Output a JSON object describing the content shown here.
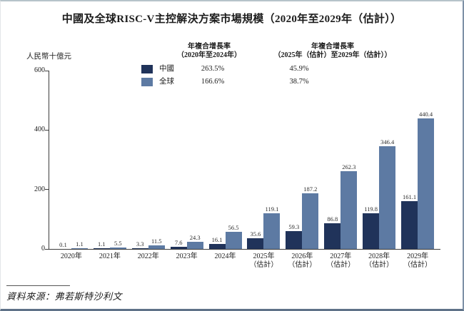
{
  "title": "中國及全球RISC-V主控解決方案市場規模（2020年至2029年（估計））",
  "y_axis_unit": "人民幣十億元",
  "legend": {
    "cagr_period_1": {
      "line1": "年複合增長率",
      "line2": "（2020年至2024年）"
    },
    "cagr_period_2": {
      "line1": "年複合增長率",
      "line2": "（2025年（估計）至2029年（估計））"
    },
    "rows": [
      {
        "label": "中國",
        "cagr1": "263.5%",
        "cagr2": "45.9%"
      },
      {
        "label": "全球",
        "cagr1": "166.6%",
        "cagr2": "38.7%"
      }
    ]
  },
  "source": "資料來源：弗若斯特沙利文",
  "colors": {
    "china": "#20335a",
    "global": "#5d7aa3",
    "axis": "#3c3c3c"
  },
  "chart_data": {
    "type": "bar",
    "title": "中國及全球RISC-V主控解決方案市場規模（2020年至2029年（估計））",
    "xlabel": "",
    "ylabel": "人民幣十億元",
    "ylim": [
      0,
      600
    ],
    "yticks": [
      0,
      200,
      400,
      600
    ],
    "grid": false,
    "legend_position": "top",
    "categories": [
      {
        "year": "2020年",
        "note": ""
      },
      {
        "year": "2021年",
        "note": ""
      },
      {
        "year": "2022年",
        "note": ""
      },
      {
        "year": "2023年",
        "note": ""
      },
      {
        "year": "2024年",
        "note": ""
      },
      {
        "year": "2025年",
        "note": "（估計）"
      },
      {
        "year": "2026年",
        "note": "（估計）"
      },
      {
        "year": "2027年",
        "note": "（估計）"
      },
      {
        "year": "2028年",
        "note": "（估計）"
      },
      {
        "year": "2029年",
        "note": "（估計）"
      }
    ],
    "series": [
      {
        "name": "中國",
        "color": "#20335a",
        "cagr_2020_2024": "263.5%",
        "cagr_2025_2029": "45.9%",
        "values": [
          0.1,
          1.1,
          3.3,
          7.6,
          16.1,
          35.6,
          59.3,
          86.8,
          119.8,
          161.1
        ]
      },
      {
        "name": "全球",
        "color": "#5d7aa3",
        "cagr_2020_2024": "166.6%",
        "cagr_2025_2029": "38.7%",
        "values": [
          1.1,
          5.5,
          11.5,
          24.3,
          56.5,
          119.1,
          187.2,
          262.3,
          346.4,
          440.4
        ]
      }
    ]
  }
}
